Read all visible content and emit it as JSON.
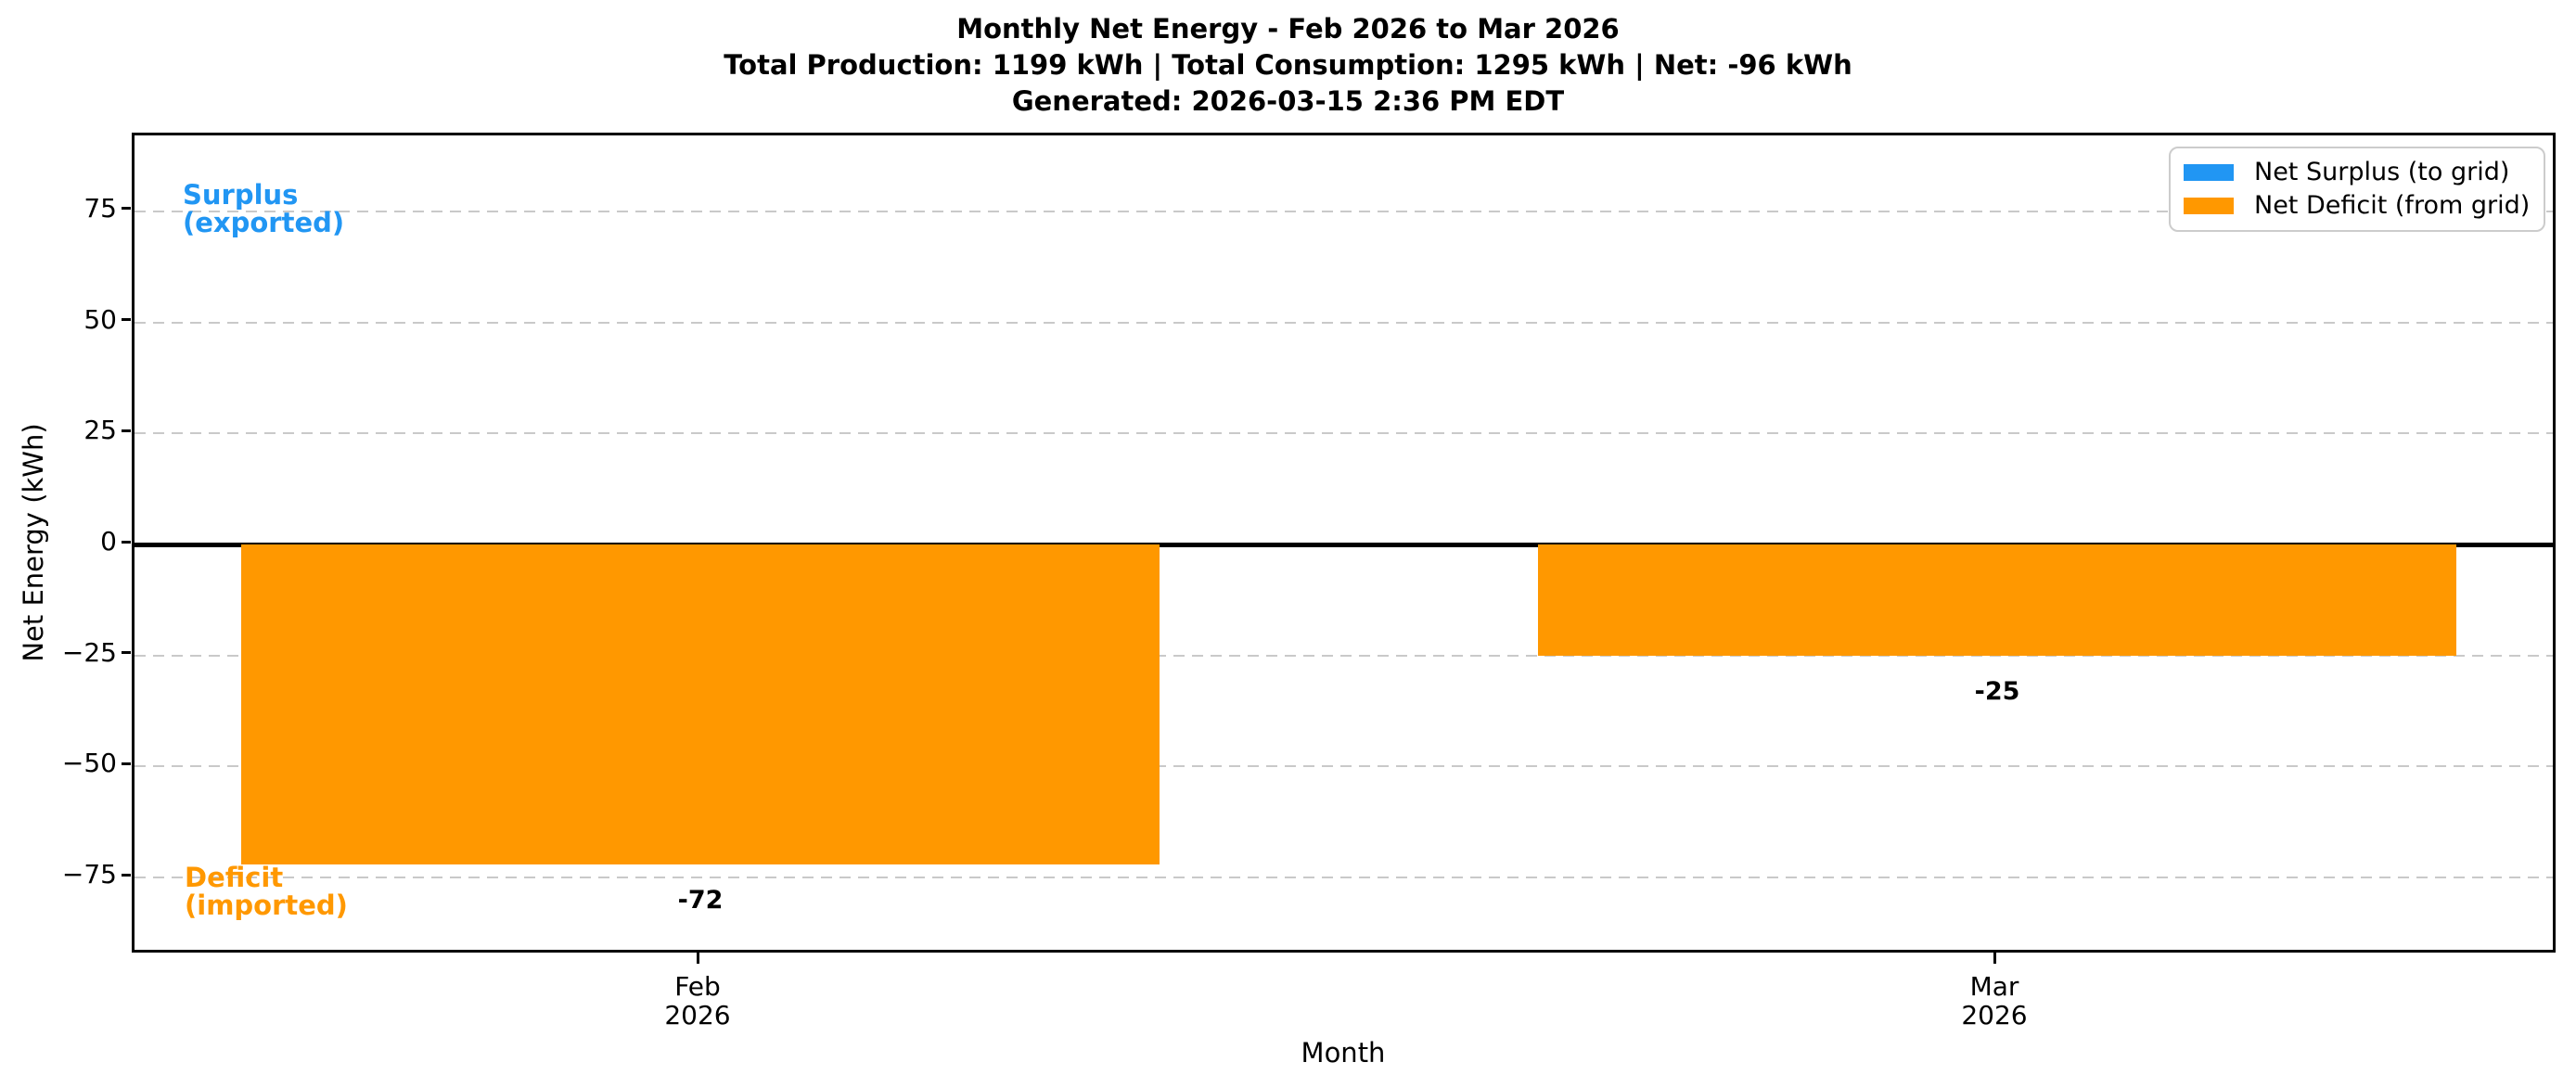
{
  "chart_data": {
    "type": "bar",
    "title": "Monthly Net Energy - Feb 2026 to Mar 2026",
    "subtitle": "Total Production: 1199 kWh | Total Consumption: 1295 kWh | Net: -96 kWh",
    "generated_line": "Generated: 2026-03-15 2:36 PM EDT",
    "xlabel": "Month",
    "ylabel": "Net Energy (kWh)",
    "categories": [
      {
        "month": "Feb",
        "year": "2026"
      },
      {
        "month": "Mar",
        "year": "2026"
      }
    ],
    "values": [
      -72,
      -25
    ],
    "value_labels": [
      "-72",
      "-25"
    ],
    "ylim": [
      -92.5,
      92.1
    ],
    "yticks": [
      {
        "value": 75,
        "label": "75"
      },
      {
        "value": 50,
        "label": "50"
      },
      {
        "value": 25,
        "label": "25"
      },
      {
        "value": 0,
        "label": "0"
      },
      {
        "value": -25,
        "label": "−25"
      },
      {
        "value": -50,
        "label": "−50"
      },
      {
        "value": -75,
        "label": "−75"
      }
    ],
    "grid": {
      "axis": "y",
      "style": "dashed",
      "color": "#c9c9c9"
    },
    "colors": {
      "surplus": "#2196F3",
      "deficit": "#FF9800"
    },
    "legend": {
      "position": "upper-right",
      "items": [
        {
          "label": "Net Surplus (to grid)",
          "color_key": "surplus"
        },
        {
          "label": "Net Deficit (from grid)",
          "color_key": "deficit"
        }
      ]
    },
    "annotations": [
      {
        "lines": [
          "Surplus",
          "(exported)"
        ],
        "color_key": "surplus",
        "anchor_value": 75
      },
      {
        "lines": [
          "Deficit",
          "(imported)"
        ],
        "color_key": "deficit",
        "anchor_value": -75
      }
    ]
  }
}
